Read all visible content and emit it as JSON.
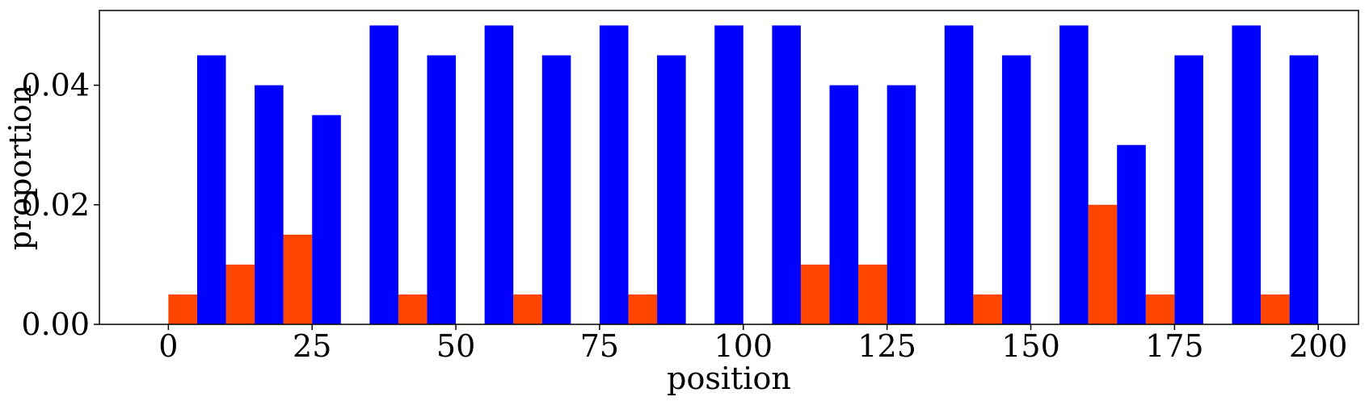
{
  "chart_data": {
    "type": "bar",
    "title": "",
    "xlabel": "position",
    "ylabel": "proportion",
    "xlim": [
      -12,
      207
    ],
    "ylim": [
      0,
      0.0525
    ],
    "xticks": [
      0,
      25,
      50,
      75,
      100,
      125,
      150,
      175,
      200
    ],
    "xtick_labels": [
      "0",
      "25",
      "50",
      "75",
      "100",
      "125",
      "150",
      "175",
      "200"
    ],
    "yticks": [
      0.0,
      0.02,
      0.04
    ],
    "ytick_labels": [
      "0.00",
      "0.02",
      "0.04"
    ],
    "bar_width": 5,
    "grid": false,
    "legend": "none",
    "series": [
      {
        "color": "#ff4500",
        "x": [
          2.5,
          7.5,
          12.5,
          17.5,
          22.5,
          27.5,
          32.5,
          37.5,
          42.5,
          47.5,
          52.5,
          57.5,
          62.5,
          67.5,
          72.5,
          77.5,
          82.5,
          87.5,
          92.5,
          97.5,
          102.5,
          107.5,
          112.5,
          117.5,
          122.5,
          127.5,
          132.5,
          137.5,
          142.5,
          147.5,
          152.5,
          157.5,
          162.5,
          167.5,
          172.5,
          177.5,
          182.5,
          187.5,
          192.5,
          197.5
        ],
        "values": [
          0.005,
          0,
          0.01,
          0,
          0.015,
          0,
          0,
          0,
          0.005,
          0,
          0,
          0,
          0.005,
          0,
          0,
          0,
          0.005,
          0,
          0,
          0,
          0,
          0,
          0.01,
          0,
          0.01,
          0,
          0,
          0,
          0.005,
          0,
          0,
          0,
          0.02,
          0,
          0.005,
          0,
          0,
          0,
          0.005,
          0
        ]
      },
      {
        "color": "#0000ff",
        "x": [
          2.5,
          7.5,
          12.5,
          17.5,
          22.5,
          27.5,
          32.5,
          37.5,
          42.5,
          47.5,
          52.5,
          57.5,
          62.5,
          67.5,
          72.5,
          77.5,
          82.5,
          87.5,
          92.5,
          97.5,
          102.5,
          107.5,
          112.5,
          117.5,
          122.5,
          127.5,
          132.5,
          137.5,
          142.5,
          147.5,
          152.5,
          157.5,
          162.5,
          167.5,
          172.5,
          177.5,
          182.5,
          187.5,
          192.5,
          197.5
        ],
        "values": [
          0,
          0.045,
          0,
          0.04,
          0,
          0.035,
          0,
          0.05,
          0,
          0.045,
          0,
          0.05,
          0,
          0.045,
          0,
          0.05,
          0,
          0.045,
          0,
          0.05,
          0,
          0.05,
          0,
          0.04,
          0,
          0.04,
          0,
          0.05,
          0,
          0.045,
          0,
          0.05,
          0,
          0.03,
          0,
          0.045,
          0,
          0.05,
          0,
          0.045
        ]
      }
    ]
  }
}
